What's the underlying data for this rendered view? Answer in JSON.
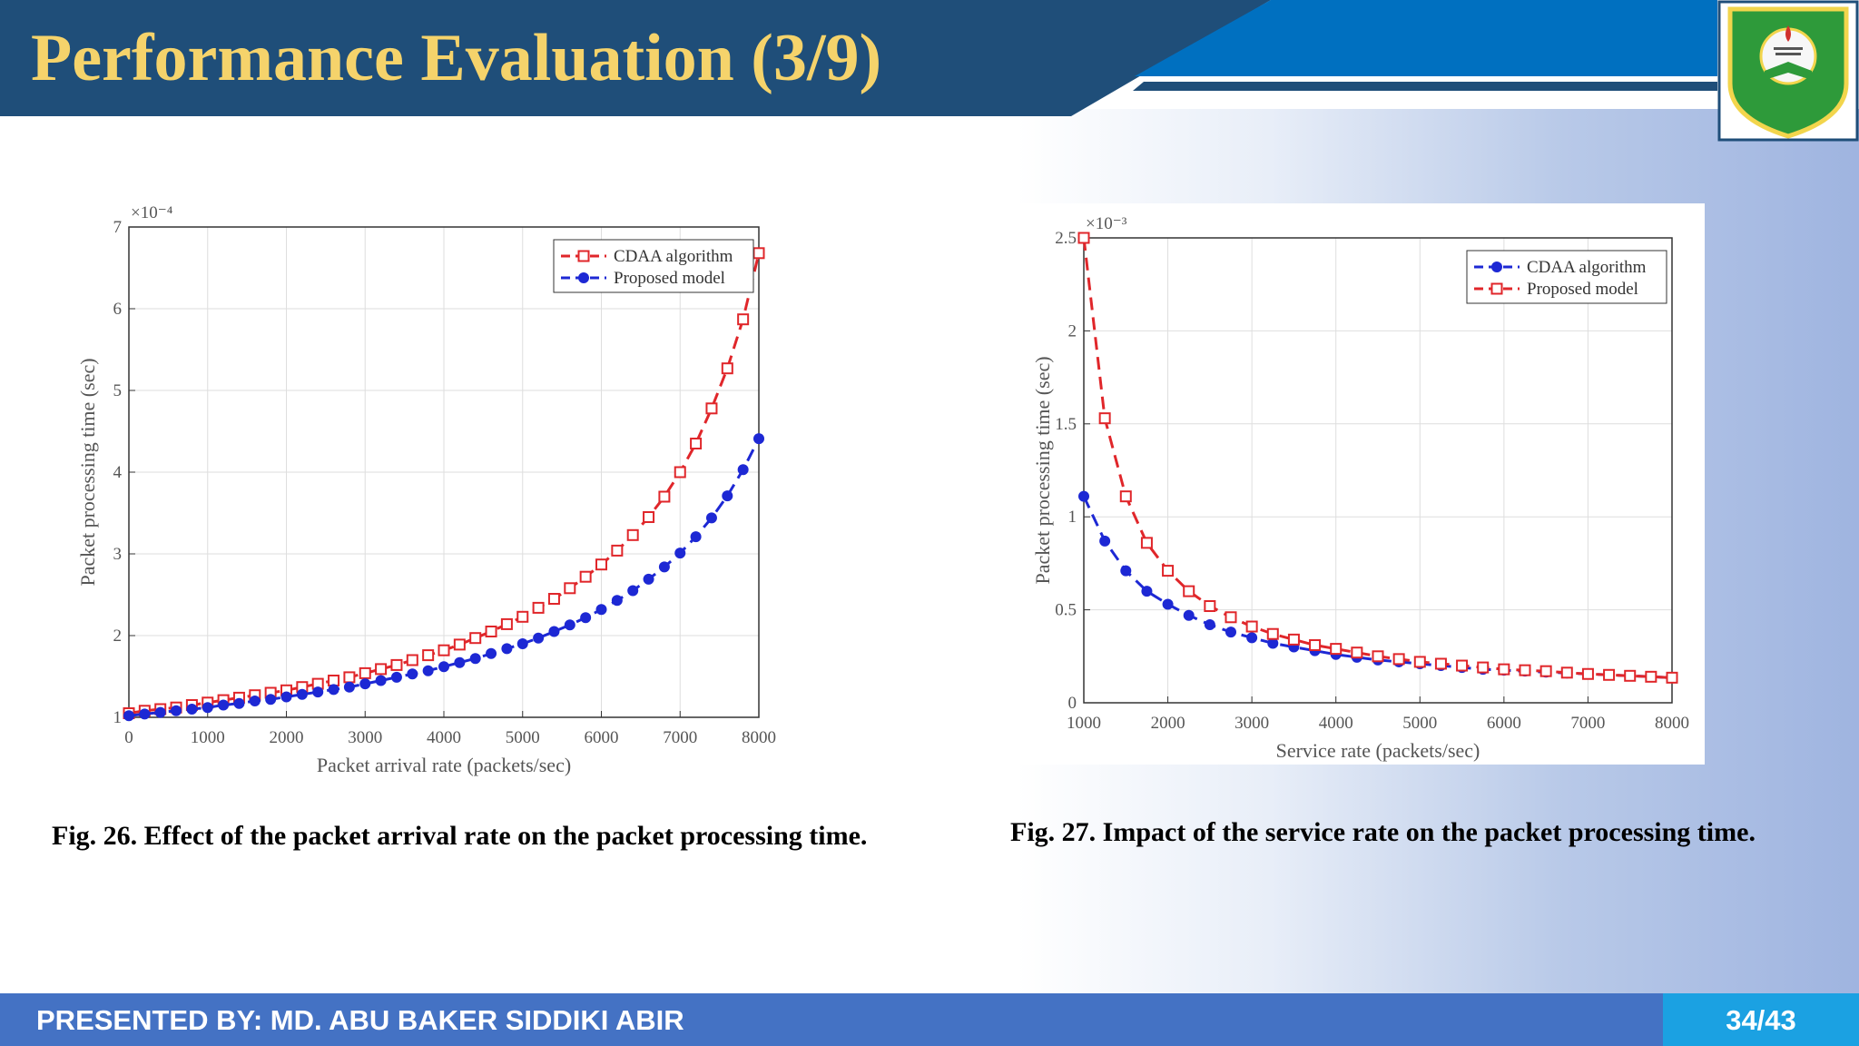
{
  "header": {
    "title": "Performance Evaluation (3/9)"
  },
  "footer": {
    "presenter": "PRESENTED BY: MD. ABU BAKER SIDDIKI ABIR",
    "page": "34/43"
  },
  "logo": {
    "icon": "university-crest-icon",
    "colors": {
      "green": "#2e9a3a",
      "yellow": "#f2d54c",
      "red": "#d0312d"
    }
  },
  "captions": {
    "fig26": "Fig. 26. Effect of the packet arrival rate on the packet processing time.",
    "fig27": "Fig. 27. Impact of the service rate on the packet processing time."
  },
  "colors": {
    "header_dark": "#1f4e79",
    "header_blue": "#0070c0",
    "title_gold": "#f5d36b",
    "footer_blue": "#4472c4",
    "page_box": "#1ba1e2",
    "series_red": "#e0262a",
    "series_blue": "#1d28d4"
  },
  "chart_data": [
    {
      "type": "line",
      "title": "",
      "xlabel": "Packet arrival rate (packets/sec)",
      "ylabel": "Packet processing time (sec)",
      "exponent_label": "×10⁻⁴",
      "xlim": [
        0,
        8000
      ],
      "ylim": [
        1,
        7
      ],
      "xticks": [
        0,
        1000,
        2000,
        3000,
        4000,
        5000,
        6000,
        7000,
        8000
      ],
      "yticks": [
        1,
        2,
        3,
        4,
        5,
        6,
        7
      ],
      "grid": true,
      "legend_position": "top-right",
      "x": [
        0,
        200,
        400,
        600,
        800,
        1000,
        1200,
        1400,
        1600,
        1800,
        2000,
        2200,
        2400,
        2600,
        2800,
        3000,
        3200,
        3400,
        3600,
        3800,
        4000,
        4200,
        4400,
        4600,
        4800,
        5000,
        5200,
        5400,
        5600,
        5800,
        6000,
        6200,
        6400,
        6600,
        6800,
        7000,
        7200,
        7400,
        7600,
        7800,
        8000
      ],
      "series": [
        {
          "name": "CDAA algorithm",
          "color": "#e0262a",
          "marker": "square-open",
          "values": [
            1.05,
            1.08,
            1.1,
            1.12,
            1.15,
            1.18,
            1.21,
            1.24,
            1.27,
            1.3,
            1.33,
            1.37,
            1.41,
            1.45,
            1.49,
            1.54,
            1.59,
            1.64,
            1.7,
            1.76,
            1.82,
            1.89,
            1.97,
            2.05,
            2.14,
            2.23,
            2.34,
            2.45,
            2.58,
            2.72,
            2.87,
            3.04,
            3.23,
            3.45,
            3.7,
            4.0,
            4.35,
            4.78,
            5.27,
            5.87,
            6.68
          ]
        },
        {
          "name": "Proposed model",
          "color": "#1d28d4",
          "marker": "circle-filled",
          "values": [
            1.02,
            1.04,
            1.06,
            1.08,
            1.1,
            1.12,
            1.15,
            1.17,
            1.2,
            1.22,
            1.25,
            1.28,
            1.31,
            1.34,
            1.37,
            1.41,
            1.45,
            1.49,
            1.53,
            1.57,
            1.62,
            1.67,
            1.72,
            1.78,
            1.84,
            1.9,
            1.97,
            2.05,
            2.13,
            2.22,
            2.32,
            2.43,
            2.55,
            2.69,
            2.84,
            3.01,
            3.21,
            3.44,
            3.71,
            4.03,
            4.41
          ]
        }
      ]
    },
    {
      "type": "line",
      "title": "",
      "xlabel": "Service rate (packets/sec)",
      "ylabel": "Packet processing time (sec)",
      "exponent_label": "×10⁻³",
      "xlim": [
        1000,
        8000
      ],
      "ylim": [
        0,
        2.5
      ],
      "xticks": [
        1000,
        2000,
        3000,
        4000,
        5000,
        6000,
        7000,
        8000
      ],
      "yticks": [
        0,
        0.5,
        1,
        1.5,
        2,
        2.5
      ],
      "grid": true,
      "legend_position": "top-right",
      "x": [
        1000,
        1250,
        1500,
        1750,
        2000,
        2250,
        2500,
        2750,
        3000,
        3250,
        3500,
        3750,
        4000,
        4250,
        4500,
        4750,
        5000,
        5250,
        5500,
        5750,
        6000,
        6250,
        6500,
        6750,
        7000,
        7250,
        7500,
        7750,
        8000
      ],
      "series": [
        {
          "name": "CDAA algorithm",
          "color": "#1d28d4",
          "marker": "circle-filled",
          "values": [
            1.11,
            0.87,
            0.71,
            0.6,
            0.53,
            0.47,
            0.42,
            0.38,
            0.35,
            0.32,
            0.3,
            0.28,
            0.26,
            0.245,
            0.23,
            0.22,
            0.21,
            0.2,
            0.19,
            0.18,
            0.175,
            0.17,
            0.165,
            0.16,
            0.155,
            0.15,
            0.145,
            0.14,
            0.135
          ]
        },
        {
          "name": "Proposed model",
          "color": "#e0262a",
          "marker": "square-open",
          "values": [
            2.5,
            1.53,
            1.11,
            0.86,
            0.71,
            0.6,
            0.52,
            0.46,
            0.41,
            0.37,
            0.34,
            0.31,
            0.29,
            0.27,
            0.25,
            0.235,
            0.22,
            0.21,
            0.2,
            0.19,
            0.18,
            0.175,
            0.17,
            0.162,
            0.155,
            0.15,
            0.145,
            0.14,
            0.135
          ]
        }
      ]
    }
  ]
}
